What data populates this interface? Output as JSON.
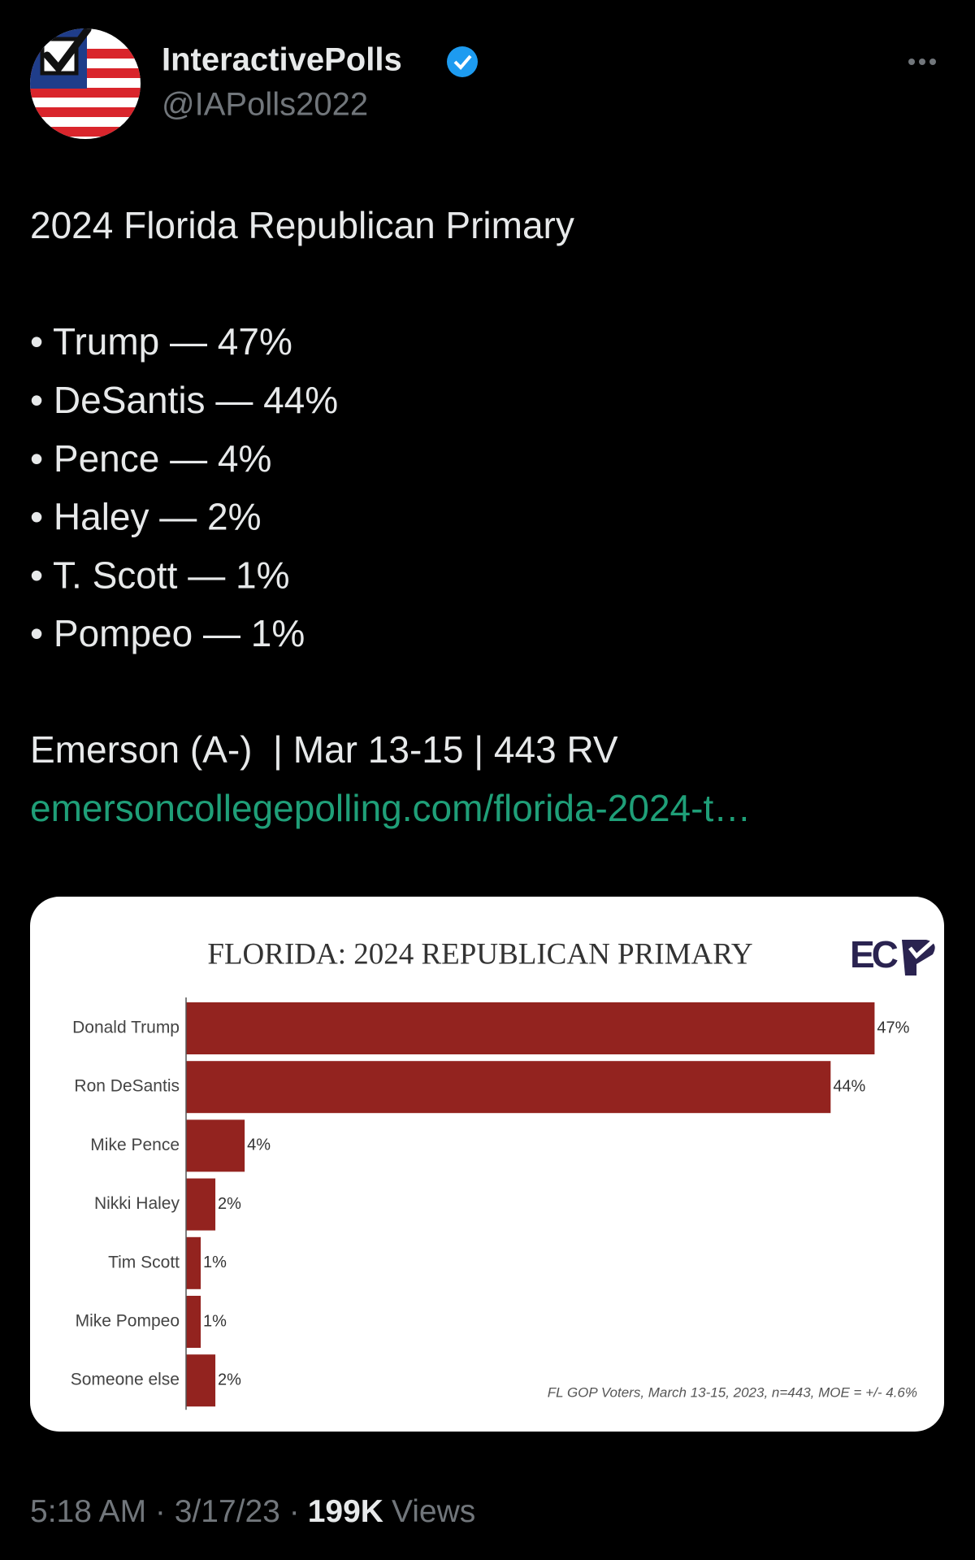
{
  "tweet": {
    "name": "InteractivePolls",
    "handle": "@IAPolls2022",
    "title": "2024 Florida Republican Primary",
    "items": [
      "• Trump — 47%",
      "• DeSantis — 44%",
      "• Pence — 4%",
      "• Haley — 2%",
      "• T. Scott — 1%",
      "• Pompeo — 1%"
    ],
    "source": "Emerson (A-)  | Mar 13-15 | 443 RV",
    "link": "emersoncollegepolling.com/florida-2024-t…",
    "timestamp": "5:18 AM · 3/17/23 ·",
    "views_count": "199K",
    "views_label": "Views"
  },
  "chart_data": {
    "type": "bar",
    "orientation": "horizontal",
    "title": "FLORIDA: 2024 REPUBLICAN PRIMARY",
    "logo": "EC",
    "note": "FL GOP Voters, March 13-15, 2023, n=443, MOE = +/- 4.6%",
    "categories": [
      "Donald Trump",
      "Ron DeSantis",
      "Mike Pence",
      "Nikki Haley",
      "Tim Scott",
      "Mike Pompeo",
      "Someone else"
    ],
    "values": [
      47,
      44,
      4,
      2,
      1,
      1,
      2
    ],
    "value_labels": [
      "47%",
      "44%",
      "4%",
      "2%",
      "1%",
      "1%",
      "2%"
    ],
    "color": "#93231f"
  }
}
